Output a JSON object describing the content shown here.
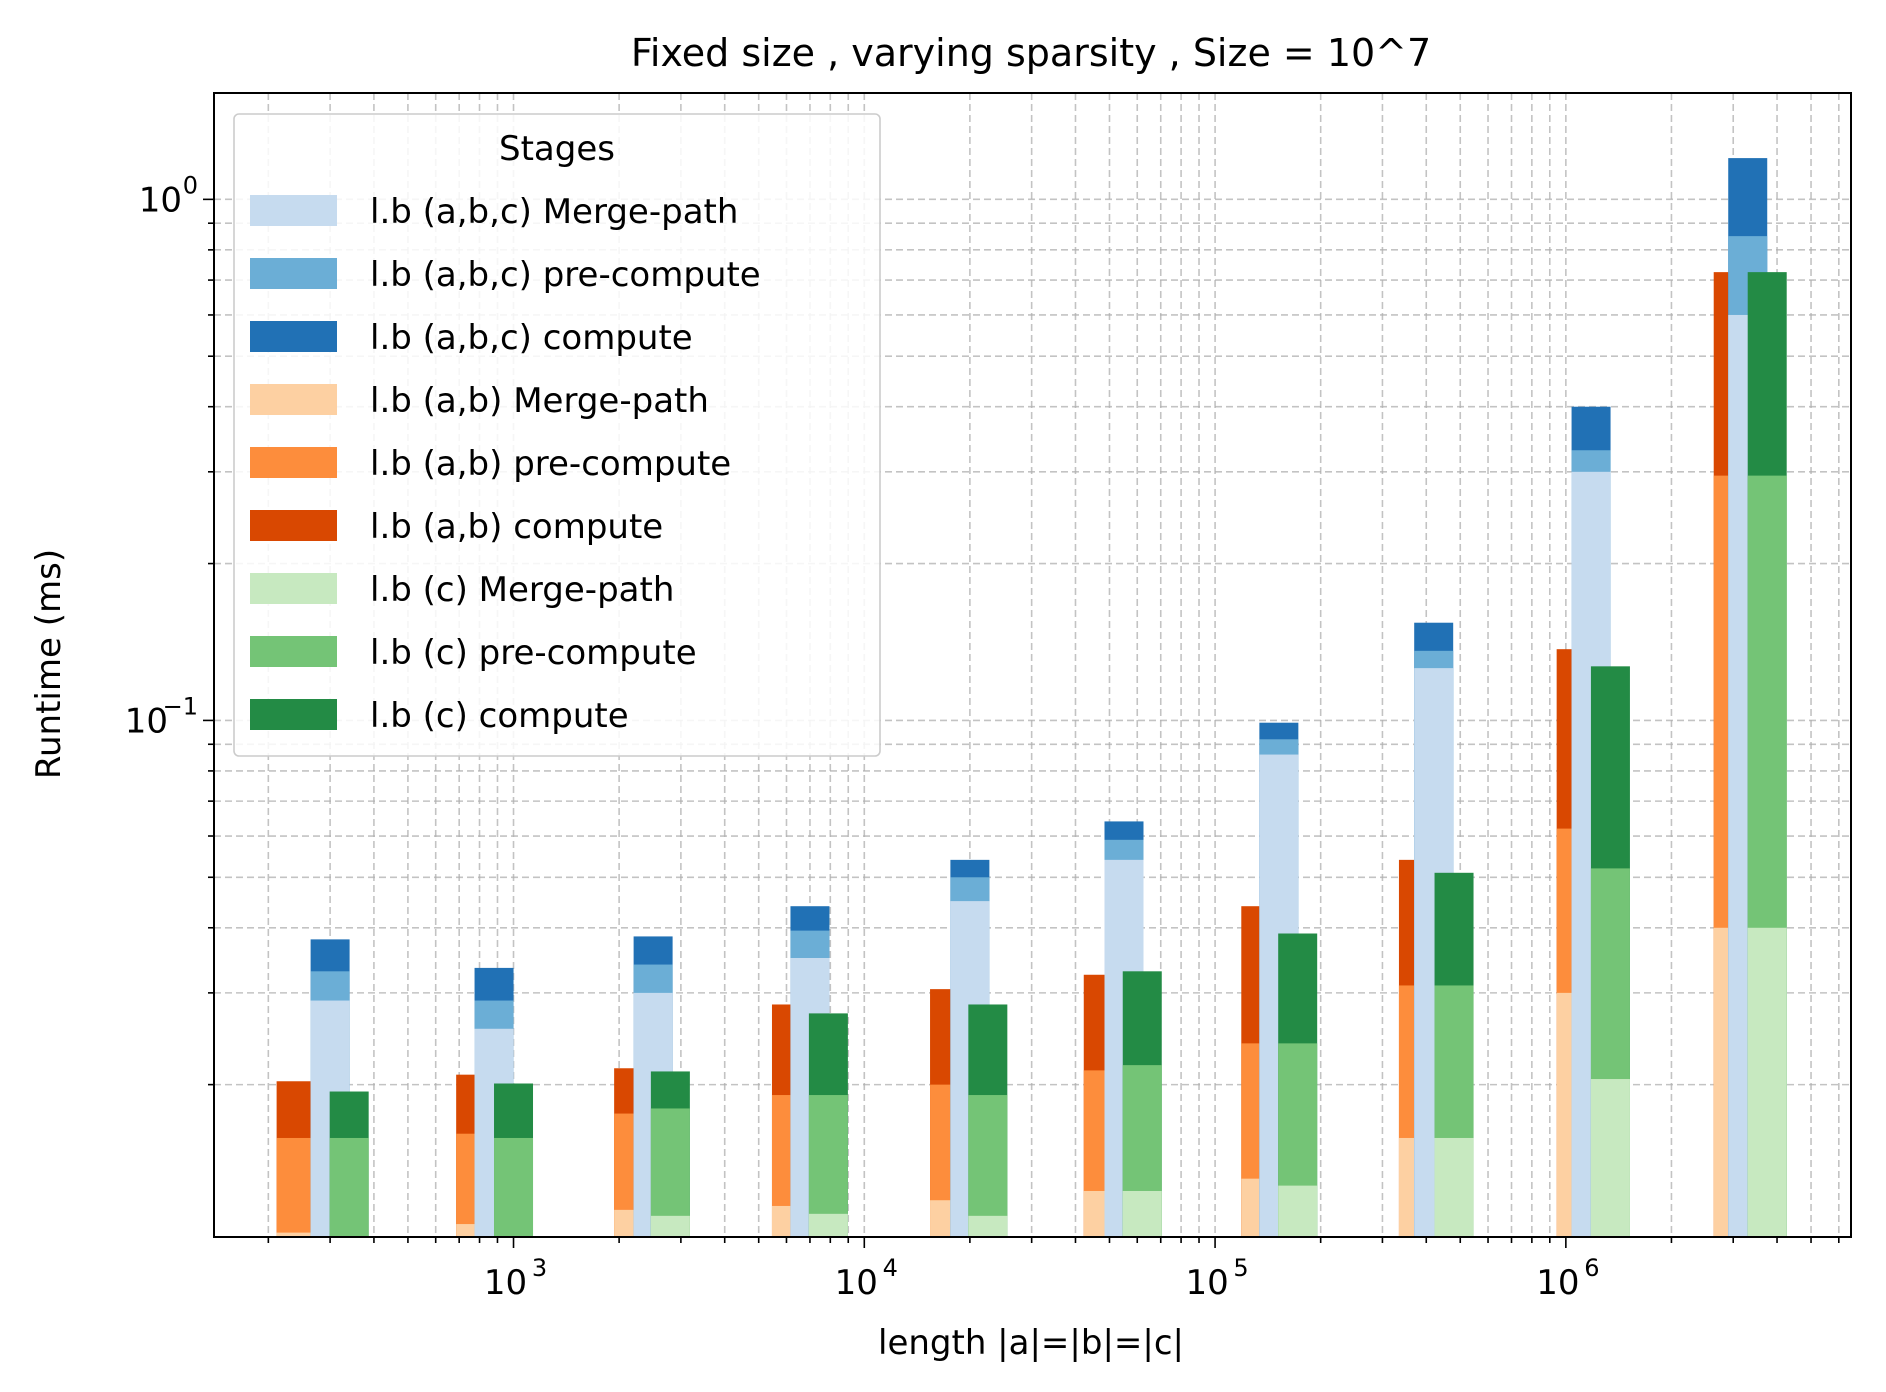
{
  "chart_data": {
    "type": "bar",
    "stacked": true,
    "title": "Fixed size , varying sparsity , Size = 10^7",
    "xlabel": "length |a|=|b|=|c|",
    "ylabel": "Runtime (ms)",
    "x_scale": "log",
    "y_scale": "log",
    "xlim": [
      140,
      6500000
    ],
    "ylim": [
      0.0102,
      1.6
    ],
    "x_ticks": [
      {
        "value": 1000,
        "base": "10",
        "exp": "3"
      },
      {
        "value": 10000,
        "base": "10",
        "exp": "4"
      },
      {
        "value": 100000,
        "base": "10",
        "exp": "5"
      },
      {
        "value": 1000000,
        "base": "10",
        "exp": "6"
      }
    ],
    "y_ticks": [
      {
        "value": 1,
        "base": "10",
        "exp": "0"
      },
      {
        "value": 0.1,
        "base": "10",
        "exp": "−1"
      }
    ],
    "grid": true,
    "legend": {
      "title": "Stages",
      "placement": "upper-left"
    },
    "colors": {
      "abc_merge": "#c6dbef",
      "abc_pre": "#6baed6",
      "abc_compute": "#2171b5",
      "ab_merge": "#fdd0a2",
      "ab_pre": "#fd8d3c",
      "ab_compute": "#d94801",
      "c_merge": "#c7e9c0",
      "c_pre": "#74c476",
      "c_compute": "#238b45"
    },
    "series": [
      {
        "key": "ab",
        "x": [
          240,
          780,
          2200,
          6200,
          17500,
          48000,
          135000,
          380000,
          1070000,
          3000000
        ]
      },
      {
        "key": "abc",
        "x": [
          300,
          880,
          2500,
          7000,
          20000,
          55000,
          152000,
          420000,
          1180000,
          3300000
        ]
      },
      {
        "key": "c",
        "x": [
          340,
          1000,
          2800,
          7900,
          22500,
          62000,
          172000,
          480000,
          1340000,
          3750000
        ]
      }
    ],
    "stacks": {
      "ab": [
        {
          "merge": 0.0104,
          "pre": 0.0158,
          "compute": 0.0203
        },
        {
          "merge": 0.0108,
          "pre": 0.0161,
          "compute": 0.0209
        },
        {
          "merge": 0.0115,
          "pre": 0.0176,
          "compute": 0.0215
        },
        {
          "merge": 0.0117,
          "pre": 0.0191,
          "compute": 0.0285
        },
        {
          "merge": 0.012,
          "pre": 0.02,
          "compute": 0.0305
        },
        {
          "merge": 0.0125,
          "pre": 0.0213,
          "compute": 0.0325
        },
        {
          "merge": 0.0132,
          "pre": 0.024,
          "compute": 0.044
        },
        {
          "merge": 0.0158,
          "pre": 0.031,
          "compute": 0.054
        },
        {
          "merge": 0.03,
          "pre": 0.062,
          "compute": 0.137
        },
        {
          "merge": 0.04,
          "pre": 0.295,
          "compute": 0.725
        }
      ],
      "abc": [
        {
          "merge": 0.029,
          "pre": 0.033,
          "compute": 0.038
        },
        {
          "merge": 0.0256,
          "pre": 0.029,
          "compute": 0.0335
        },
        {
          "merge": 0.03,
          "pre": 0.034,
          "compute": 0.0385
        },
        {
          "merge": 0.035,
          "pre": 0.0395,
          "compute": 0.044
        },
        {
          "merge": 0.045,
          "pre": 0.05,
          "compute": 0.054
        },
        {
          "merge": 0.054,
          "pre": 0.059,
          "compute": 0.064
        },
        {
          "merge": 0.086,
          "pre": 0.092,
          "compute": 0.099
        },
        {
          "merge": 0.126,
          "pre": 0.136,
          "compute": 0.154
        },
        {
          "merge": 0.3,
          "pre": 0.33,
          "compute": 0.4
        },
        {
          "merge": 0.6,
          "pre": 0.85,
          "compute": 1.2
        }
      ],
      "c": [
        {
          "merge": 0.0102,
          "pre": 0.0158,
          "compute": 0.0194
        },
        {
          "merge": 0.0102,
          "pre": 0.0158,
          "compute": 0.0201
        },
        {
          "merge": 0.0112,
          "pre": 0.018,
          "compute": 0.0212
        },
        {
          "merge": 0.0113,
          "pre": 0.0191,
          "compute": 0.0274
        },
        {
          "merge": 0.0112,
          "pre": 0.0191,
          "compute": 0.0285
        },
        {
          "merge": 0.0125,
          "pre": 0.0218,
          "compute": 0.033
        },
        {
          "merge": 0.0128,
          "pre": 0.024,
          "compute": 0.039
        },
        {
          "merge": 0.0158,
          "pre": 0.031,
          "compute": 0.051
        },
        {
          "merge": 0.0205,
          "pre": 0.052,
          "compute": 0.127
        },
        {
          "merge": 0.04,
          "pre": 0.295,
          "compute": 0.725
        }
      ]
    },
    "legend_entries": [
      {
        "label": "l.b (a,b,c)  Merge-path",
        "color": "#c6dbef"
      },
      {
        "label": "l.b (a,b,c)  pre-compute",
        "color": "#6baed6"
      },
      {
        "label": "l.b (a,b,c)  compute",
        "color": "#2171b5"
      },
      {
        "label": "l.b (a,b)  Merge-path",
        "color": "#fdd0a2"
      },
      {
        "label": "l.b (a,b)  pre-compute",
        "color": "#fd8d3c"
      },
      {
        "label": "l.b (a,b)  compute",
        "color": "#d94801"
      },
      {
        "label": "l.b (c)  Merge-path",
        "color": "#c7e9c0"
      },
      {
        "label": "l.b (c)  pre-compute",
        "color": "#74c476"
      },
      {
        "label": "l.b (c)  compute",
        "color": "#238b45"
      }
    ]
  }
}
